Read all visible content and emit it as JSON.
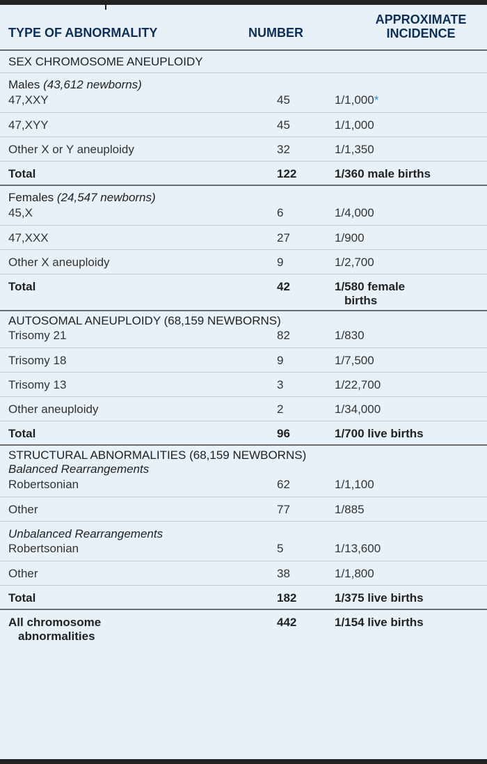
{
  "header": {
    "col1": "TYPE OF ABNORMALITY",
    "col2": "NUMBER",
    "col3_line1": "APPROXIMATE",
    "col3_line2": "INCIDENCE"
  },
  "sections": {
    "sex": {
      "title": "SEX CHROMOSOME ANEUPLOIDY",
      "males_label": "Males",
      "males_note": "(43,612 newborns)",
      "r1": [
        "47,XXY",
        "45",
        "1/1,000",
        "*"
      ],
      "r2": [
        "47,XYY",
        "45",
        "1/1,000"
      ],
      "r3": [
        "Other X or Y aneuploidy",
        "32",
        "1/1,350"
      ],
      "r4": [
        "Total",
        "122",
        "1/360 male births"
      ],
      "females_label": "Females",
      "females_note": "(24,547 newborns)",
      "r5": [
        "45,X",
        "6",
        "1/4,000"
      ],
      "r6": [
        "47,XXX",
        "27",
        "1/900"
      ],
      "r7": [
        "Other X aneuploidy",
        "9",
        "1/2,700"
      ],
      "r8": [
        "Total",
        "42",
        "1/580 female",
        "births"
      ]
    },
    "auto": {
      "title": "AUTOSOMAL ANEUPLOIDY (68,159 NEWBORNS)",
      "r1": [
        "Trisomy 21",
        "82",
        "1/830"
      ],
      "r2": [
        "Trisomy 18",
        "9",
        "1/7,500"
      ],
      "r3": [
        "Trisomy 13",
        "3",
        "1/22,700"
      ],
      "r4": [
        "Other aneuploidy",
        "2",
        "1/34,000"
      ],
      "r5": [
        "Total",
        "96",
        "1/700 live births"
      ]
    },
    "struct": {
      "title": "STRUCTURAL ABNORMALITIES (68,159 NEWBORNS)",
      "balanced_label": "Balanced Rearrangements",
      "r1": [
        "Robertsonian",
        "62",
        "1/1,100"
      ],
      "r2": [
        "Other",
        "77",
        "1/885"
      ],
      "unbalanced_label": "Unbalanced Rearrangements",
      "r3": [
        "Robertsonian",
        "5",
        "1/13,600"
      ],
      "r4": [
        "Other",
        "38",
        "1/1,800"
      ],
      "r5": [
        "Total",
        "182",
        "1/375 live births"
      ]
    },
    "all": {
      "line1": "All chromosome",
      "line2": "abnormalities",
      "number": "442",
      "incidence": "1/154 live births"
    }
  }
}
